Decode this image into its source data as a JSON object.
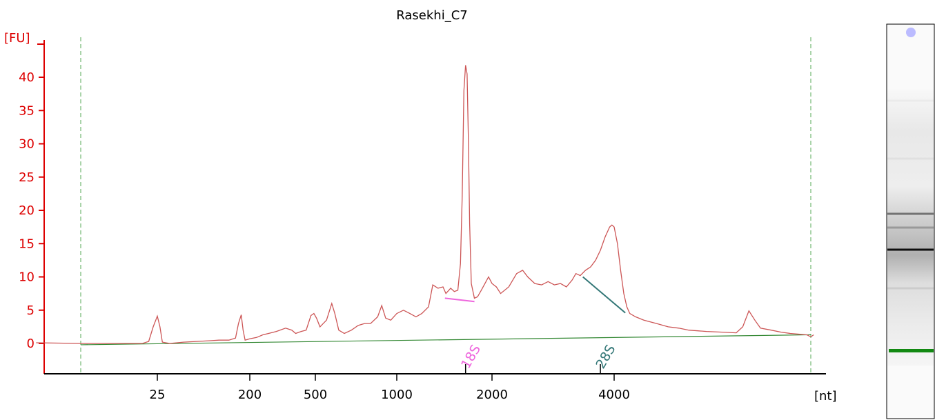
{
  "chart_data": {
    "type": "line",
    "title": "Rasekhi_C7",
    "ylabel": "[FU]",
    "xlabel": "[nt]",
    "ylim": [
      -4.5,
      46
    ],
    "y_ticks": [
      0,
      5,
      10,
      15,
      20,
      25,
      30,
      35,
      40
    ],
    "x_ticks": [
      "25",
      "200",
      "500",
      "1000",
      "2000",
      "4000"
    ],
    "x_tick_positions": [
      25,
      200,
      500,
      1000,
      2000,
      4000
    ],
    "series": [
      {
        "values": [
          [
            2,
            0.1
          ],
          [
            8,
            0.0
          ],
          [
            20,
            0.0
          ],
          [
            22,
            0.3
          ],
          [
            23.5,
            2.5
          ],
          [
            25,
            4.1
          ],
          [
            26.5,
            2.5
          ],
          [
            28,
            0.2
          ],
          [
            33,
            0.0
          ],
          [
            45,
            0.2
          ],
          [
            60,
            0.3
          ],
          [
            80,
            0.4
          ],
          [
            100,
            0.5
          ],
          [
            125,
            0.5
          ],
          [
            145,
            0.8
          ],
          [
            155,
            3.0
          ],
          [
            165,
            4.3
          ],
          [
            172,
            2.0
          ],
          [
            180,
            0.5
          ],
          [
            200,
            0.7
          ],
          [
            220,
            0.9
          ],
          [
            240,
            1.3
          ],
          [
            260,
            1.5
          ],
          [
            290,
            1.8
          ],
          [
            330,
            2.3
          ],
          [
            360,
            2.0
          ],
          [
            380,
            1.5
          ],
          [
            410,
            1.8
          ],
          [
            440,
            2.0
          ],
          [
            470,
            4.2
          ],
          [
            490,
            4.5
          ],
          [
            505,
            3.8
          ],
          [
            520,
            2.5
          ],
          [
            550,
            3.5
          ],
          [
            575,
            6.0
          ],
          [
            590,
            4.5
          ],
          [
            610,
            2.0
          ],
          [
            640,
            1.5
          ],
          [
            680,
            2.0
          ],
          [
            720,
            2.7
          ],
          [
            760,
            3.0
          ],
          [
            800,
            3.0
          ],
          [
            850,
            4.0
          ],
          [
            880,
            5.7
          ],
          [
            910,
            3.8
          ],
          [
            950,
            3.5
          ],
          [
            1000,
            4.5
          ],
          [
            1050,
            5.0
          ],
          [
            1100,
            4.5
          ],
          [
            1150,
            4.0
          ],
          [
            1200,
            4.5
          ],
          [
            1260,
            5.5
          ],
          [
            1300,
            8.8
          ],
          [
            1350,
            8.3
          ],
          [
            1400,
            8.5
          ],
          [
            1430,
            7.5
          ],
          [
            1480,
            8.3
          ],
          [
            1520,
            7.8
          ],
          [
            1560,
            8.0
          ],
          [
            1590,
            12.0
          ],
          [
            1610,
            22.0
          ],
          [
            1630,
            38.0
          ],
          [
            1650,
            41.8
          ],
          [
            1668,
            40.5
          ],
          [
            1685,
            30.0
          ],
          [
            1700,
            18.0
          ],
          [
            1720,
            9.0
          ],
          [
            1760,
            6.8
          ],
          [
            1800,
            7.0
          ],
          [
            1850,
            8.0
          ],
          [
            1900,
            9.0
          ],
          [
            1950,
            10.0
          ],
          [
            2000,
            9.0
          ],
          [
            2050,
            8.5
          ],
          [
            2100,
            7.5
          ],
          [
            2200,
            8.5
          ],
          [
            2300,
            10.5
          ],
          [
            2380,
            11.0
          ],
          [
            2450,
            10.0
          ],
          [
            2550,
            9.0
          ],
          [
            2650,
            8.8
          ],
          [
            2750,
            9.3
          ],
          [
            2850,
            8.8
          ],
          [
            2950,
            9.0
          ],
          [
            3050,
            8.5
          ],
          [
            3150,
            9.5
          ],
          [
            3220,
            10.5
          ],
          [
            3300,
            10.2
          ],
          [
            3400,
            11.0
          ],
          [
            3500,
            11.5
          ],
          [
            3600,
            12.5
          ],
          [
            3700,
            14.0
          ],
          [
            3800,
            16.0
          ],
          [
            3900,
            17.5
          ],
          [
            3950,
            17.8
          ],
          [
            4000,
            17.5
          ],
          [
            4100,
            15.0
          ],
          [
            4200,
            11.0
          ],
          [
            4300,
            7.5
          ],
          [
            4400,
            5.5
          ],
          [
            4500,
            4.5
          ],
          [
            4700,
            4.0
          ],
          [
            5000,
            3.5
          ],
          [
            5500,
            3.0
          ],
          [
            6000,
            2.5
          ],
          [
            6500,
            2.3
          ],
          [
            7000,
            2.0
          ],
          [
            7500,
            1.9
          ],
          [
            8000,
            1.8
          ],
          [
            9000,
            1.7
          ],
          [
            10000,
            1.6
          ],
          [
            10500,
            2.5
          ],
          [
            11000,
            4.9
          ],
          [
            11500,
            3.5
          ],
          [
            12000,
            2.3
          ],
          [
            13000,
            2.0
          ],
          [
            14000,
            1.7
          ],
          [
            15000,
            1.5
          ],
          [
            16000,
            1.4
          ],
          [
            17000,
            1.3
          ],
          [
            17500,
            1.0
          ],
          [
            18000,
            1.3
          ]
        ]
      }
    ],
    "baseline": [
      [
        8,
        -0.2
      ],
      [
        17500,
        1.3
      ]
    ],
    "markers": [
      {
        "label": "18S",
        "x": 1650,
        "color": "#ee66dd",
        "segment": [
          [
            1420,
            6.8
          ],
          [
            1760,
            6.3
          ]
        ]
      },
      {
        "label": "28S",
        "x": 3700,
        "color": "#337777",
        "segment": [
          [
            3350,
            10.0
          ],
          [
            4350,
            4.6
          ]
        ]
      }
    ],
    "window_lines": [
      8,
      17500
    ],
    "colors": {
      "trace": "#cc5555",
      "axis": "#000000",
      "y_axis": "#dd0000",
      "baseline": "#338833",
      "window": "#55aa55"
    },
    "grid": false,
    "legend": "none"
  },
  "gel": {
    "bands": [
      {
        "pos": 0.04,
        "shade": 0.08
      },
      {
        "pos": 0.25,
        "shade": 0.12
      },
      {
        "pos": 0.45,
        "shade": 0.55
      },
      {
        "pos": 0.5,
        "shade": 0.4
      },
      {
        "pos": 0.58,
        "shade": 0.95
      },
      {
        "pos": 0.72,
        "shade": 0.2
      }
    ],
    "marker_color": "#118811",
    "dot_color": "#bbbbff"
  }
}
